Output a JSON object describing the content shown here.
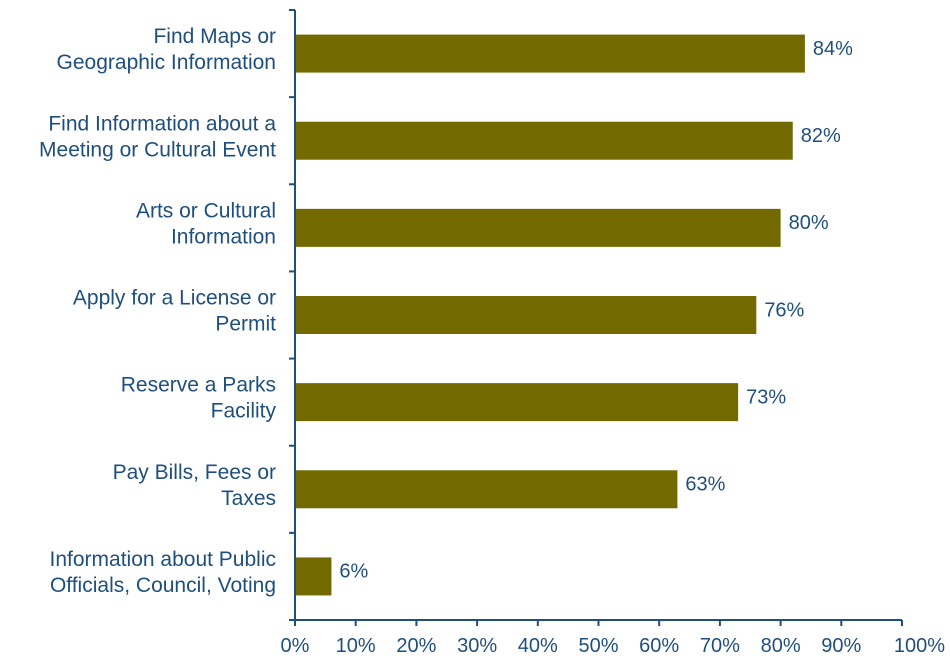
{
  "chart_data": {
    "type": "bar",
    "orientation": "horizontal",
    "title": "",
    "xlabel": "",
    "ylabel": "",
    "categories": [
      [
        "Find Maps or",
        "Geographic Information"
      ],
      [
        "Find Information about a",
        "Meeting or Cultural Event"
      ],
      [
        "Arts or Cultural",
        "Information"
      ],
      [
        "Apply for a License or",
        "Permit"
      ],
      [
        "Reserve a Parks",
        "Facility"
      ],
      [
        "Pay Bills, Fees or",
        "Taxes"
      ],
      [
        "Information about Public",
        "Officials, Council, Voting"
      ]
    ],
    "values": [
      84,
      82,
      80,
      76,
      73,
      63,
      6
    ],
    "value_labels": [
      "84%",
      "82%",
      "80%",
      "76%",
      "73%",
      "63%",
      "6%"
    ],
    "xlim": [
      0,
      100
    ],
    "x_ticks": [
      0,
      10,
      20,
      30,
      40,
      50,
      60,
      70,
      80,
      90,
      100
    ],
    "x_tick_labels": [
      "0%",
      "10%",
      "20%",
      "30%",
      "40%",
      "50%",
      "60%",
      "70%",
      "80%",
      "90%",
      "100%"
    ],
    "grid": false,
    "legend": "none"
  },
  "colors": {
    "bar": "#726a00",
    "text": "#1f4f7f",
    "axis": "#1f4f7f",
    "background": "#ffffff"
  }
}
